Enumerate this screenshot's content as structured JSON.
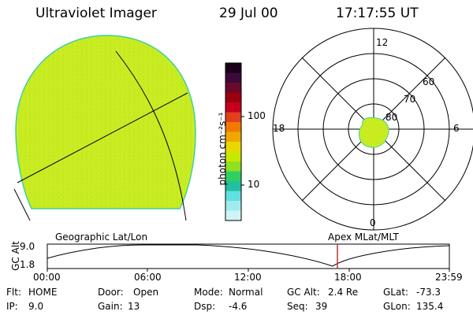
{
  "header": {
    "instrument": "Ultraviolet Imager",
    "date": "29 Jul 00",
    "time": "17:17:55 UT"
  },
  "colorbar": {
    "unit_label": "photon cm⁻²s⁻¹",
    "ticks": [
      "100",
      "10"
    ],
    "colors_top_to_bottom": [
      "#1a0018",
      "#3c0a3a",
      "#6a0a2a",
      "#9a0010",
      "#c4001c",
      "#e0401c",
      "#f07a00",
      "#f0a800",
      "#e8d800",
      "#c8e800",
      "#8ee020",
      "#30d060",
      "#20c0a0",
      "#60e0e0",
      "#a0ecec",
      "#d0f4f4"
    ]
  },
  "polar_plot": {
    "clock_labels": [
      "12",
      "18",
      "6",
      "0"
    ],
    "lat_labels": [
      "60",
      "70",
      "80"
    ]
  },
  "geo_panel": {
    "disk_color": "#c8ec20",
    "rim_color": "#40d0a0"
  },
  "timeline": {
    "left_title": "Geographic Lat/Lon",
    "right_title": "Apex MLat/MLT",
    "y_axis_label": "GC Alt",
    "y_ticks": [
      "9.0",
      "1.8"
    ],
    "x_ticks": [
      "00:00",
      "06:00",
      "12:00",
      "18:00",
      "23:59"
    ],
    "marker_color": "#c03030"
  },
  "footer": {
    "row1": [
      {
        "label": "Flt:",
        "value": "HOME"
      },
      {
        "label": "Door:",
        "value": "Open"
      },
      {
        "label": "Mode:",
        "value": "Normal"
      },
      {
        "label": "GC Alt:",
        "value": "2.4 Re"
      },
      {
        "label": "GLat:",
        "value": "-73.3"
      }
    ],
    "row2": [
      {
        "label": "IP:",
        "value": "9.0"
      },
      {
        "label": "Gain:",
        "value": "13"
      },
      {
        "label": "Dsp:",
        "value": "-4.6"
      },
      {
        "label": "Seq:",
        "value": "39"
      },
      {
        "label": "GLon:",
        "value": "135.4"
      }
    ]
  }
}
